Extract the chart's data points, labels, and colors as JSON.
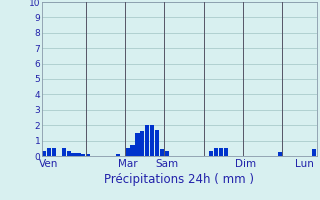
{
  "title": "Précipitations 24h ( mm )",
  "bar_color": "#0033cc",
  "background_color": "#d8f0f0",
  "grid_color": "#aacccc",
  "axis_label_color": "#2222aa",
  "tick_label_color": "#2222aa",
  "separator_color": "#555566",
  "ylim": [
    0,
    10
  ],
  "yticks": [
    0,
    1,
    2,
    3,
    4,
    5,
    6,
    7,
    8,
    9,
    10
  ],
  "n_bars": 56,
  "bar_values": [
    0.3,
    0.55,
    0.55,
    0.0,
    0.55,
    0.3,
    0.2,
    0.2,
    0.15,
    0.15,
    0.0,
    0.0,
    0.0,
    0.0,
    0.0,
    0.15,
    0.0,
    0.5,
    0.7,
    1.5,
    1.6,
    2.0,
    2.0,
    1.7,
    0.45,
    0.35,
    0.0,
    0.0,
    0.0,
    0.0,
    0.0,
    0.0,
    0.0,
    0.0,
    0.35,
    0.5,
    0.5,
    0.5,
    0.0,
    0.0,
    0.0,
    0.0,
    0.0,
    0.0,
    0.0,
    0.0,
    0.0,
    0.0,
    0.25,
    0.0,
    0.0,
    0.0,
    0.0,
    0.0,
    0.0,
    0.45
  ],
  "day_labels": [
    "Ven",
    "Mar",
    "Sam",
    "Dim",
    "Lun"
  ],
  "day_positions": [
    1,
    17,
    25,
    41,
    53
  ],
  "separator_positions": [
    8.5,
    16.5,
    24.5,
    32.5,
    40.5,
    48.5
  ]
}
